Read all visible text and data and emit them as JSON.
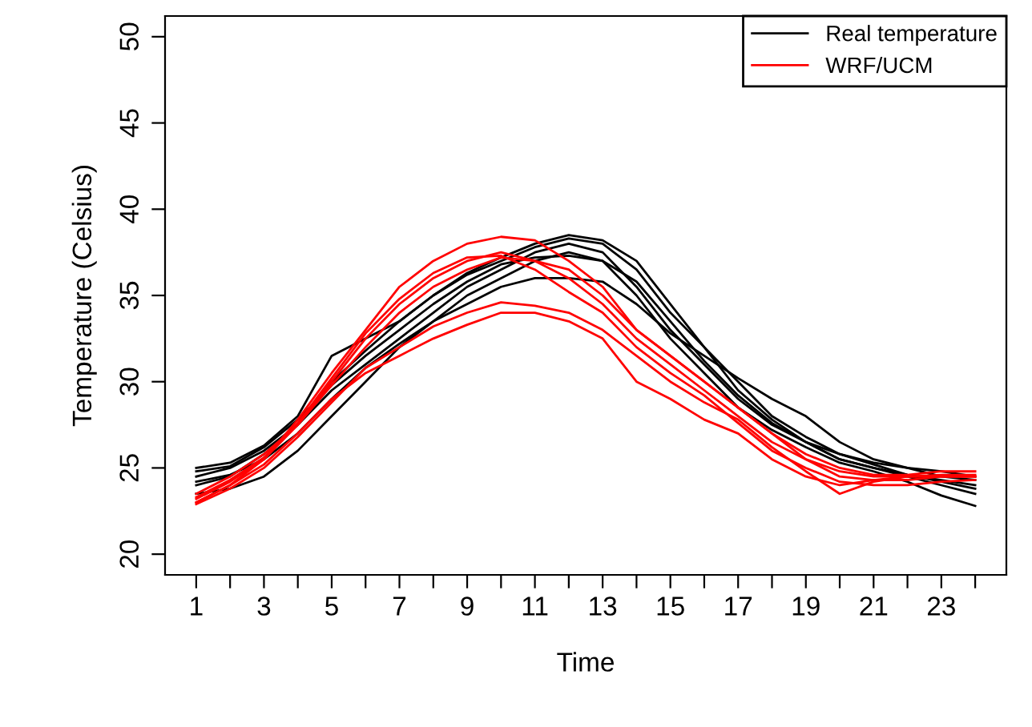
{
  "chart_data": {
    "type": "line",
    "xlabel": "Time",
    "ylabel": "Temperature (Celsius)",
    "x": [
      1,
      2,
      3,
      4,
      5,
      6,
      7,
      8,
      9,
      10,
      11,
      12,
      13,
      14,
      15,
      16,
      17,
      18,
      19,
      20,
      21,
      22,
      23,
      24
    ],
    "xlim": [
      0.08,
      24.92
    ],
    "ylim": [
      18.8,
      51.2
    ],
    "xticks": [
      1,
      {
        "value": 2,
        "label": null
      },
      3,
      {
        "value": 4,
        "label": null
      },
      5,
      {
        "value": 6,
        "label": null
      },
      7,
      {
        "value": 8,
        "label": null
      },
      9,
      {
        "value": 10,
        "label": null
      },
      11,
      {
        "value": 12,
        "label": null
      },
      13,
      {
        "value": 14,
        "label": null
      },
      15,
      {
        "value": 16,
        "label": null
      },
      17,
      {
        "value": 18,
        "label": null
      },
      19,
      {
        "value": 20,
        "label": null
      },
      21,
      {
        "value": 22,
        "label": null
      },
      23,
      {
        "value": 24,
        "label": null
      }
    ],
    "yticks": [
      20,
      25,
      30,
      35,
      40,
      45,
      50
    ],
    "grid": false,
    "legend": "top right",
    "marker": "none",
    "line_style": "solid",
    "series": [
      {
        "name": "Real temperature",
        "color": "#000000",
        "values": [
          24.5,
          25,
          26,
          27.5,
          29.5,
          31,
          32.5,
          34,
          35.5,
          36.5,
          37.5,
          38,
          37.5,
          35.5,
          33,
          31,
          29,
          27.5,
          26.5,
          25.5,
          25,
          24.5,
          24,
          23.5
        ]
      },
      {
        "color": "#000000",
        "values": [
          25,
          25.3,
          26.3,
          28,
          31.5,
          32.5,
          33.5,
          35,
          36.2,
          37,
          37.8,
          38.3,
          38,
          36.5,
          34,
          32,
          30,
          28,
          26.8,
          25.8,
          25.2,
          24.6,
          24.2,
          23.8
        ]
      },
      {
        "color": "#000000",
        "values": [
          23.5,
          23.8,
          24.5,
          26,
          28,
          30,
          32,
          33.5,
          35,
          36,
          37,
          37.5,
          37,
          35,
          32.5,
          30.5,
          28.5,
          27.2,
          26.2,
          25.3,
          24.8,
          24.2,
          23.4,
          22.8
        ]
      },
      {
        "color": "#000000",
        "values": [
          24.2,
          24.6,
          25.5,
          27,
          29,
          30.8,
          32.2,
          33.5,
          34.5,
          35.5,
          36,
          36,
          35.8,
          34.5,
          32.8,
          31.5,
          30.2,
          29,
          28,
          26.5,
          25.5,
          25,
          24.5,
          24.3
        ]
      },
      {
        "color": "#000000",
        "values": [
          24,
          24.5,
          25.8,
          27.5,
          30,
          31.8,
          33.5,
          35,
          36.3,
          37.2,
          38,
          38.5,
          38.2,
          37,
          34.5,
          32,
          29.5,
          27.8,
          26.5,
          25.5,
          25,
          24.6,
          24.3,
          24
        ]
      },
      {
        "color": "#000000",
        "values": [
          24.8,
          25.1,
          26.2,
          27.8,
          29.8,
          31.5,
          33,
          34.5,
          35.8,
          36.8,
          37.2,
          37.3,
          37,
          35.8,
          33.5,
          31.2,
          29.2,
          27.6,
          26.5,
          25.8,
          25.3,
          25,
          24.8,
          24.5
        ]
      },
      {
        "name": "WRF/UCM",
        "color": "#ff0000",
        "values": [
          23.2,
          24.2,
          25.5,
          27.5,
          30,
          32.5,
          34.5,
          36,
          37,
          37.5,
          37,
          36,
          34.5,
          32.5,
          31,
          29.5,
          28,
          26.5,
          25.5,
          24.8,
          24.5,
          24.5,
          24.5,
          24.5
        ]
      },
      {
        "color": "#ff0000",
        "values": [
          23,
          24,
          25.5,
          27.8,
          30.5,
          33,
          35.5,
          37,
          38,
          38.4,
          38.2,
          37,
          35.5,
          33,
          31.5,
          30,
          28.5,
          27,
          25.8,
          25,
          24.6,
          24.6,
          24.8,
          24.8
        ]
      },
      {
        "color": "#ff0000",
        "values": [
          23.5,
          24.5,
          25.8,
          27.5,
          29.8,
          32,
          34,
          35.5,
          36.5,
          37.2,
          37,
          36.5,
          35,
          33,
          31.5,
          30,
          28.5,
          27,
          25.5,
          24.5,
          24.3,
          24.3,
          24.5,
          24.5
        ]
      },
      {
        "color": "#ff0000",
        "values": [
          23,
          24,
          25.2,
          27,
          29,
          30.5,
          31.5,
          32.5,
          33.3,
          34,
          34,
          33.5,
          32.5,
          30,
          29,
          27.8,
          27,
          25.5,
          24.5,
          24,
          24.3,
          24.5,
          24.5,
          24.5
        ]
      },
      {
        "color": "#ff0000",
        "values": [
          22.9,
          23.8,
          25,
          26.8,
          28.8,
          30.8,
          32,
          33.2,
          34,
          34.6,
          34.4,
          34,
          33,
          31.5,
          30,
          28.8,
          27.8,
          26.2,
          24.8,
          23.5,
          24.2,
          24.5,
          24.6,
          24.6
        ]
      },
      {
        "color": "#ff0000",
        "values": [
          23.3,
          24.3,
          25.6,
          27.6,
          30.2,
          32.8,
          34.8,
          36.3,
          37.2,
          37.3,
          36.5,
          35.2,
          34,
          32,
          30.5,
          29.2,
          27.6,
          26,
          25,
          24.2,
          24,
          24,
          24.2,
          24.3
        ]
      }
    ]
  }
}
